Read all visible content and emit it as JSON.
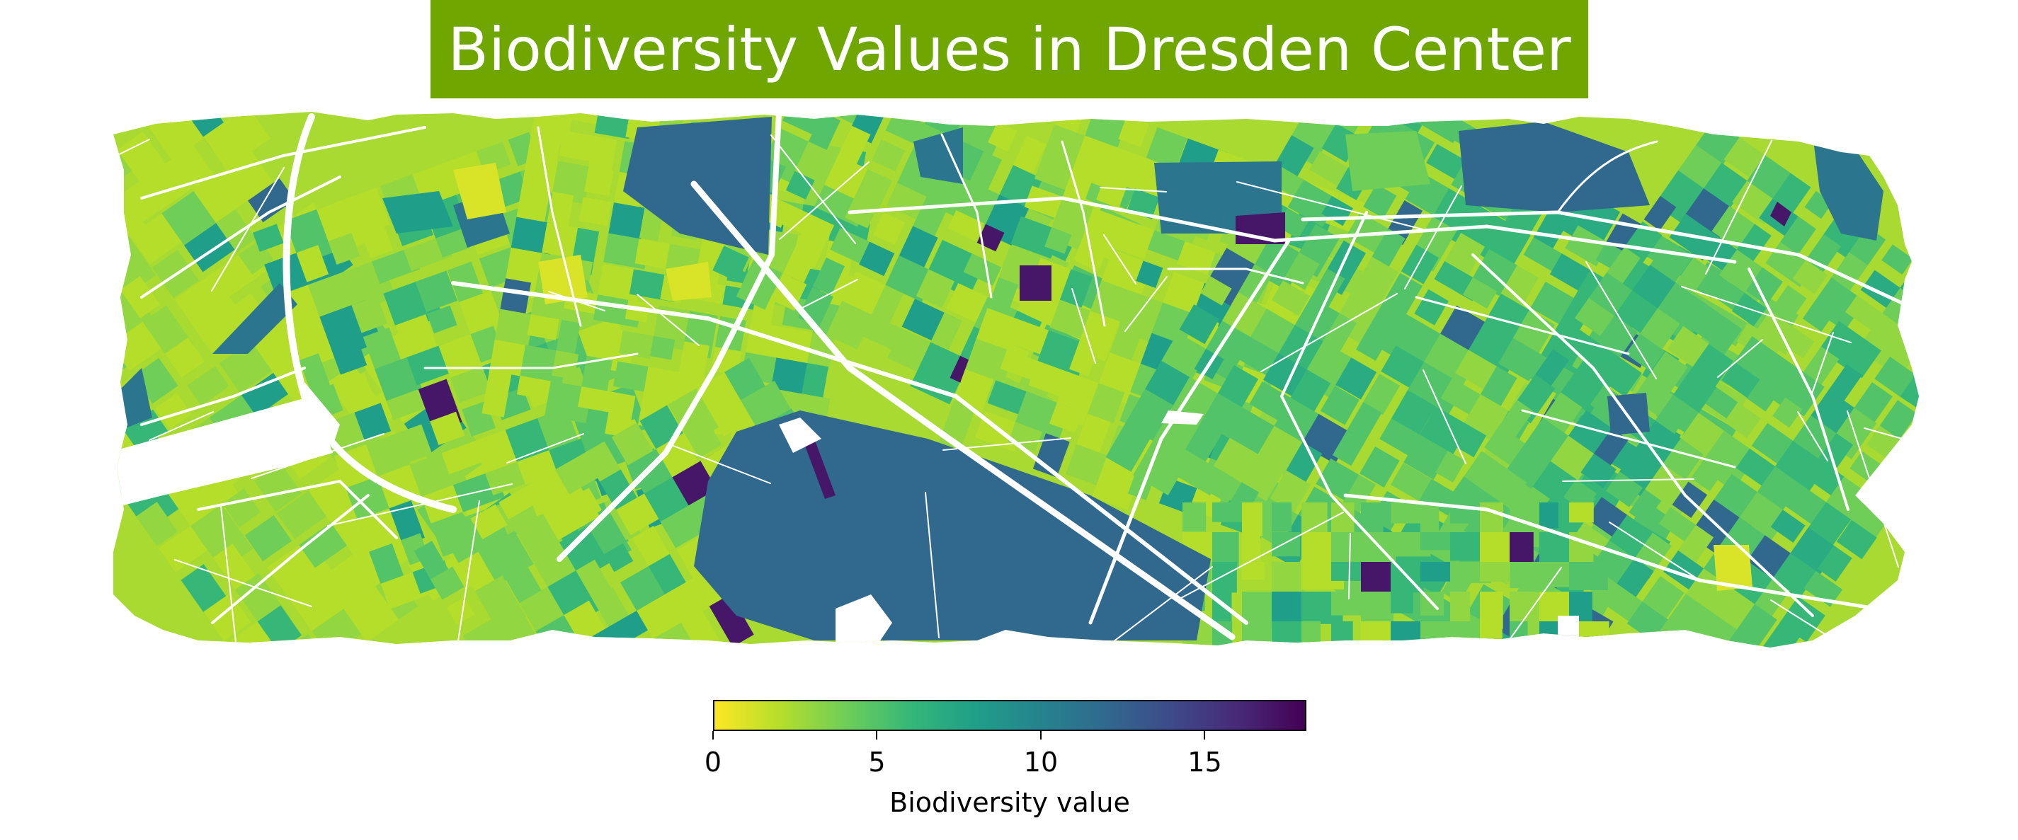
{
  "title": "Biodiversity Values in Dresden Center",
  "banner_color": "#6fa700",
  "colormap": {
    "name": "viridis_r",
    "stops": [
      "#fde725",
      "#b5de2b",
      "#6ece58",
      "#35b779",
      "#1f9e89",
      "#26828e",
      "#31688e",
      "#3e4989",
      "#482878",
      "#440154"
    ]
  },
  "colorbar": {
    "min": 0,
    "max": 18.1,
    "ticks": [
      {
        "value": 0,
        "label": "0"
      },
      {
        "value": 5,
        "label": "5"
      },
      {
        "value": 10,
        "label": "10"
      },
      {
        "value": 15,
        "label": "15"
      }
    ],
    "label": "Biodiversity value"
  },
  "map": {
    "street_color": "#ffffff",
    "dominant_values": [
      2,
      3,
      4,
      5,
      6,
      7,
      8,
      12,
      17
    ]
  }
}
